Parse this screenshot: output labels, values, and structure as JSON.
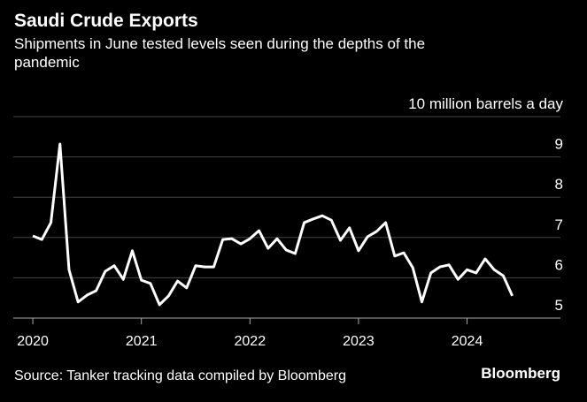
{
  "chart_data": {
    "type": "line",
    "title": "Saudi Crude Exports",
    "subtitle": [
      "Shipments in June tested levels seen during the depths of the",
      "pandemic"
    ],
    "source": "Source: Tanker tracking data compiled by Bloomberg",
    "brand": "Bloomberg",
    "x": [
      "2020-01",
      "2020-02",
      "2020-03",
      "2020-04",
      "2020-05",
      "2020-06",
      "2020-07",
      "2020-08",
      "2020-09",
      "2020-10",
      "2020-11",
      "2020-12",
      "2021-01",
      "2021-02",
      "2021-03",
      "2021-04",
      "2021-05",
      "2021-06",
      "2021-07",
      "2021-08",
      "2021-09",
      "2021-10",
      "2021-11",
      "2021-12",
      "2022-01",
      "2022-02",
      "2022-03",
      "2022-04",
      "2022-05",
      "2022-06",
      "2022-07",
      "2022-08",
      "2022-09",
      "2022-10",
      "2022-11",
      "2022-12",
      "2023-01",
      "2023-02",
      "2023-03",
      "2023-04",
      "2023-05",
      "2023-06",
      "2023-07",
      "2023-08",
      "2023-09",
      "2023-10",
      "2023-11",
      "2023-12",
      "2024-01",
      "2024-02",
      "2024-03",
      "2024-04",
      "2024-05",
      "2024-06"
    ],
    "series": [
      {
        "color": "#ffffff",
        "values": [
          7.04,
          6.95,
          7.37,
          9.32,
          6.2,
          5.4,
          5.57,
          5.68,
          6.16,
          6.3,
          5.96,
          6.67,
          5.94,
          5.86,
          5.33,
          5.55,
          5.92,
          5.75,
          6.3,
          6.27,
          6.27,
          6.95,
          6.97,
          6.84,
          6.97,
          7.17,
          6.73,
          6.97,
          6.69,
          6.6,
          7.37,
          7.46,
          7.54,
          7.43,
          6.93,
          7.24,
          6.67,
          7.02,
          7.15,
          7.37,
          6.54,
          6.62,
          6.25,
          5.4,
          6.12,
          6.27,
          6.32,
          5.96,
          6.2,
          6.12,
          6.47,
          6.2,
          6.05,
          5.55
        ]
      }
    ],
    "xlim": [
      2019.82,
      2024.86
    ],
    "xticks": [
      2020,
      2021,
      2022,
      2023,
      2024
    ],
    "ylim": [
      5,
      10
    ],
    "yticks": [
      5,
      6,
      7,
      8,
      9,
      {
        "value": 10,
        "label": "10 million barrels a day"
      }
    ],
    "grid": true
  }
}
